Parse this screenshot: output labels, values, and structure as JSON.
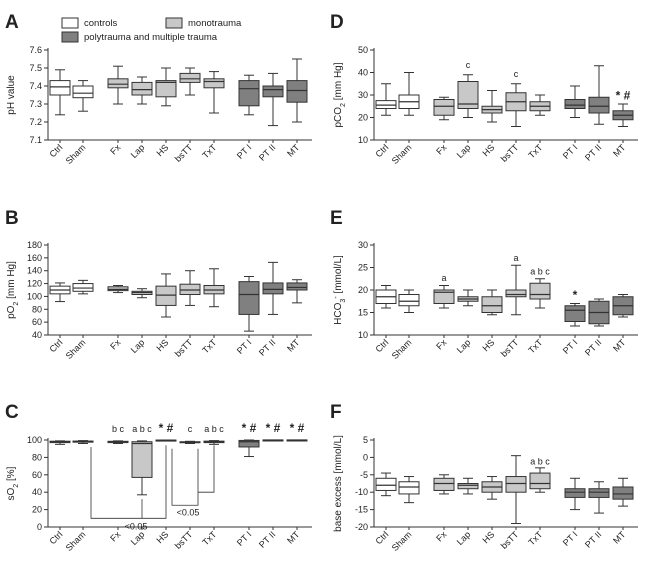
{
  "colors": {
    "control": "#ffffff",
    "mono": "#c8c8c8",
    "poly": "#808080",
    "line": "#333333"
  },
  "legend": {
    "controls": "controls",
    "monotrauma": "monotrauma",
    "poly": "polytrauma and multiple trauma"
  },
  "chart_data": [
    {
      "type": "box",
      "letter": "A",
      "ylabel": "pH value",
      "yticks": [
        "7.6",
        "7.5",
        "7.4",
        "7.3",
        "7.2",
        "7.1"
      ],
      "ylim": [
        7.1,
        7.6
      ],
      "categories": [
        "Ctrl",
        "Sham",
        "Fx",
        "Lap",
        "HS",
        "bsTT",
        "TxT",
        "PT I",
        "PT II",
        "MT"
      ],
      "groups": [
        "control",
        "control",
        "mono",
        "mono",
        "mono",
        "mono",
        "mono",
        "poly",
        "poly",
        "poly"
      ],
      "boxes": [
        {
          "min": 7.24,
          "q1": 7.35,
          "med": 7.395,
          "q3": 7.43,
          "max": 7.49
        },
        {
          "min": 7.26,
          "q1": 7.335,
          "med": 7.36,
          "q3": 7.4,
          "max": 7.43
        },
        {
          "min": 7.3,
          "q1": 7.39,
          "med": 7.41,
          "q3": 7.44,
          "max": 7.51
        },
        {
          "min": 7.3,
          "q1": 7.35,
          "med": 7.38,
          "q3": 7.42,
          "max": 7.45
        },
        {
          "min": 7.29,
          "q1": 7.34,
          "med": 7.42,
          "q3": 7.43,
          "max": 7.5
        },
        {
          "min": 7.35,
          "q1": 7.42,
          "med": 7.44,
          "q3": 7.47,
          "max": 7.5
        },
        {
          "min": 7.25,
          "q1": 7.39,
          "med": 7.425,
          "q3": 7.44,
          "max": 7.48
        },
        {
          "min": 7.24,
          "q1": 7.29,
          "med": 7.385,
          "q3": 7.43,
          "max": 7.46
        },
        {
          "min": 7.18,
          "q1": 7.34,
          "med": 7.38,
          "q3": 7.4,
          "max": 7.47
        },
        {
          "min": 7.2,
          "q1": 7.31,
          "med": 7.375,
          "q3": 7.43,
          "max": 7.55
        }
      ],
      "annotations": []
    },
    {
      "type": "box",
      "letter": "B",
      "ylabel": "pO2 [mm Hg]",
      "yticks": [
        "180",
        "160",
        "140",
        "120",
        "100",
        "80",
        "60",
        "40"
      ],
      "ylim": [
        40,
        180
      ],
      "categories": [
        "Ctrl",
        "Sham",
        "Fx",
        "Lap",
        "HS",
        "bsTT",
        "TxT",
        "PT I",
        "PT II",
        "MT"
      ],
      "groups": [
        "control",
        "control",
        "mono",
        "mono",
        "mono",
        "mono",
        "mono",
        "poly",
        "poly",
        "poly"
      ],
      "boxes": [
        {
          "min": 92,
          "q1": 104,
          "med": 110,
          "q3": 116,
          "max": 121
        },
        {
          "min": 104,
          "q1": 108,
          "med": 113,
          "q3": 120,
          "max": 125
        },
        {
          "min": 106,
          "q1": 109,
          "med": 111,
          "q3": 115,
          "max": 117
        },
        {
          "min": 98,
          "q1": 103,
          "med": 106,
          "q3": 108,
          "max": 112
        },
        {
          "min": 68,
          "q1": 86,
          "med": 102,
          "q3": 116,
          "max": 135
        },
        {
          "min": 86,
          "q1": 103,
          "med": 110,
          "q3": 119,
          "max": 140
        },
        {
          "min": 84,
          "q1": 104,
          "med": 110,
          "q3": 117,
          "max": 143
        },
        {
          "min": 46,
          "q1": 72,
          "med": 103,
          "q3": 123,
          "max": 131
        },
        {
          "min": 72,
          "q1": 104,
          "med": 111,
          "q3": 121,
          "max": 153
        },
        {
          "min": 90,
          "q1": 110,
          "med": 114,
          "q3": 121,
          "max": 126
        }
      ],
      "annotations": []
    },
    {
      "type": "box",
      "letter": "C",
      "ylabel": "sO2 [%]",
      "yticks": [
        "100",
        "80",
        "60",
        "40",
        "20",
        "0"
      ],
      "ylim": [
        0,
        100
      ],
      "categories": [
        "Ctrl",
        "Sham",
        "Fx",
        "Lap",
        "HS",
        "bsTT",
        "TxT",
        "PT I",
        "PT II",
        "MT"
      ],
      "groups": [
        "control",
        "control",
        "mono",
        "mono",
        "mono",
        "mono",
        "mono",
        "poly",
        "poly",
        "poly"
      ],
      "boxes": [
        {
          "min": 95,
          "q1": 97,
          "med": 98,
          "q3": 98.6,
          "max": 99
        },
        {
          "min": 96,
          "q1": 97.5,
          "med": 98,
          "q3": 98.8,
          "max": 99.3
        },
        {
          "min": 96,
          "q1": 97,
          "med": 98,
          "q3": 98.5,
          "max": 99
        },
        {
          "min": 37,
          "q1": 57,
          "med": 96,
          "q3": 98,
          "max": 99
        },
        {
          "min": 99,
          "q1": 99.4,
          "med": 99.7,
          "q3": 99.9,
          "max": 100
        },
        {
          "min": 96,
          "q1": 97,
          "med": 97.5,
          "q3": 98,
          "max": 98.5
        },
        {
          "min": 95,
          "q1": 97,
          "med": 98,
          "q3": 98.7,
          "max": 99.3
        },
        {
          "min": 81,
          "q1": 92,
          "med": 98,
          "q3": 99.5,
          "max": 100
        },
        {
          "min": 99.5,
          "q1": 99.8,
          "med": 100,
          "q3": 100,
          "max": 100
        },
        {
          "min": 99.5,
          "q1": 99.8,
          "med": 100,
          "q3": 100,
          "max": 100
        }
      ],
      "annotations": [
        {
          "cat": 2,
          "text": "b c",
          "y": 106
        },
        {
          "cat": 3,
          "text": "a b c",
          "y": 106
        },
        {
          "cat": 4,
          "text": "* #",
          "y": 106,
          "bold": true
        },
        {
          "cat": 5,
          "text": "c",
          "y": 106
        },
        {
          "cat": 6,
          "text": "a b c",
          "y": 106
        },
        {
          "cat": 7,
          "text": "* #",
          "y": 106,
          "bold": true
        },
        {
          "cat": 8,
          "text": "* #",
          "y": 106,
          "bold": true
        },
        {
          "cat": 9,
          "text": "* #",
          "y": 106,
          "bold": true
        }
      ],
      "pvalue_labels": [
        "<0.05",
        "<0.05"
      ]
    },
    {
      "type": "box",
      "letter": "D",
      "ylabel": "pCO2 [mm Hg]",
      "yticks": [
        "50",
        "40",
        "30",
        "20",
        "10"
      ],
      "ylim": [
        10,
        50
      ],
      "categories": [
        "Ctrl",
        "Sham",
        "Fx",
        "Lap",
        "HS",
        "bsTT",
        "TxT",
        "PT I",
        "PT II",
        "MT"
      ],
      "groups": [
        "control",
        "control",
        "mono",
        "mono",
        "mono",
        "mono",
        "mono",
        "poly",
        "poly",
        "poly"
      ],
      "boxes": [
        {
          "min": 21,
          "q1": 24,
          "med": 25.5,
          "q3": 27.5,
          "max": 35
        },
        {
          "min": 21,
          "q1": 24,
          "med": 27,
          "q3": 30,
          "max": 40
        },
        {
          "min": 19,
          "q1": 21,
          "med": 25,
          "q3": 28,
          "max": 29
        },
        {
          "min": 20,
          "q1": 24,
          "med": 26,
          "q3": 36,
          "max": 39
        },
        {
          "min": 18,
          "q1": 22,
          "med": 23.5,
          "q3": 25,
          "max": 32
        },
        {
          "min": 16,
          "q1": 23,
          "med": 27,
          "q3": 31,
          "max": 35
        },
        {
          "min": 21,
          "q1": 23,
          "med": 25,
          "q3": 27,
          "max": 30
        },
        {
          "min": 20,
          "q1": 24,
          "med": 25.5,
          "q3": 28,
          "max": 34
        },
        {
          "min": 17,
          "q1": 22,
          "med": 25,
          "q3": 29,
          "max": 43
        },
        {
          "min": 16,
          "q1": 19,
          "med": 21,
          "q3": 23,
          "max": 26
        }
      ],
      "annotations": [
        {
          "cat": 3,
          "text": "c",
          "y": 42
        },
        {
          "cat": 5,
          "text": "c",
          "y": 38
        },
        {
          "cat": 9,
          "text": "* #",
          "y": 28,
          "bold": true
        }
      ]
    },
    {
      "type": "box",
      "letter": "E",
      "ylabel": "HCO3- [mmol/L]",
      "yticks": [
        "30",
        "25",
        "20",
        "15",
        "10"
      ],
      "ylim": [
        10,
        30
      ],
      "categories": [
        "Ctrl",
        "Sham",
        "Fx",
        "Lap",
        "HS",
        "bsTT",
        "TxT",
        "PT I",
        "PT II",
        "MT"
      ],
      "groups": [
        "control",
        "control",
        "mono",
        "mono",
        "mono",
        "mono",
        "mono",
        "poly",
        "poly",
        "poly"
      ],
      "boxes": [
        {
          "min": 16,
          "q1": 17,
          "med": 18.5,
          "q3": 20,
          "max": 21
        },
        {
          "min": 15,
          "q1": 16.5,
          "med": 17.5,
          "q3": 19,
          "max": 20
        },
        {
          "min": 16,
          "q1": 17,
          "med": 19.5,
          "q3": 20,
          "max": 21
        },
        {
          "min": 16.5,
          "q1": 17.5,
          "med": 18,
          "q3": 18.5,
          "max": 20
        },
        {
          "min": 14.5,
          "q1": 15,
          "med": 16.5,
          "q3": 18.5,
          "max": 20
        },
        {
          "min": 14.5,
          "q1": 18.5,
          "med": 19,
          "q3": 20,
          "max": 25.5
        },
        {
          "min": 16,
          "q1": 18,
          "med": 19,
          "q3": 21.5,
          "max": 22.5
        },
        {
          "min": 12,
          "q1": 13,
          "med": 15.5,
          "q3": 16.5,
          "max": 17
        },
        {
          "min": 12,
          "q1": 12.5,
          "med": 15,
          "q3": 17.5,
          "max": 18
        },
        {
          "min": 14,
          "q1": 14.5,
          "med": 16.5,
          "q3": 18.5,
          "max": 19
        }
      ],
      "annotations": [
        {
          "cat": 2,
          "text": "a",
          "y": 22
        },
        {
          "cat": 5,
          "text": "a",
          "y": 26.5
        },
        {
          "cat": 6,
          "text": "a b c",
          "y": 23.5
        },
        {
          "cat": 7,
          "text": "*",
          "y": 18,
          "bold": true
        }
      ]
    },
    {
      "type": "box",
      "letter": "F",
      "ylabel": "base excess [mmol/L]",
      "yticks": [
        "5",
        "0",
        "-5",
        "-10",
        "-15",
        "-20"
      ],
      "ylim": [
        -20,
        5
      ],
      "categories": [
        "Ctrl",
        "Sham",
        "Fx",
        "Lap",
        "HS",
        "bsTT",
        "TxT",
        "PT I",
        "PT II",
        "MT"
      ],
      "groups": [
        "control",
        "control",
        "mono",
        "mono",
        "mono",
        "mono",
        "mono",
        "poly",
        "poly",
        "poly"
      ],
      "boxes": [
        {
          "min": -11,
          "q1": -9.5,
          "med": -8,
          "q3": -6,
          "max": -4.5
        },
        {
          "min": -13,
          "q1": -10.5,
          "med": -8.5,
          "q3": -7,
          "max": -5.5
        },
        {
          "min": -10.5,
          "q1": -9.5,
          "med": -7.5,
          "q3": -6,
          "max": -5
        },
        {
          "min": -10.5,
          "q1": -9,
          "med": -8,
          "q3": -7.5,
          "max": -6
        },
        {
          "min": -12,
          "q1": -10,
          "med": -8.5,
          "q3": -7,
          "max": -5.5
        },
        {
          "min": -19,
          "q1": -10,
          "med": -7.5,
          "q3": -5.5,
          "max": 0.5
        },
        {
          "min": -10,
          "q1": -9,
          "med": -7.5,
          "q3": -4.5,
          "max": -3
        },
        {
          "min": -15,
          "q1": -11.5,
          "med": -10,
          "q3": -9,
          "max": -6
        },
        {
          "min": -16,
          "q1": -11.5,
          "med": -10,
          "q3": -9,
          "max": -7
        },
        {
          "min": -14,
          "q1": -12,
          "med": -10.5,
          "q3": -8.5,
          "max": -6
        }
      ],
      "annotations": [
        {
          "cat": 6,
          "text": "a b c",
          "y": -2
        }
      ]
    }
  ]
}
